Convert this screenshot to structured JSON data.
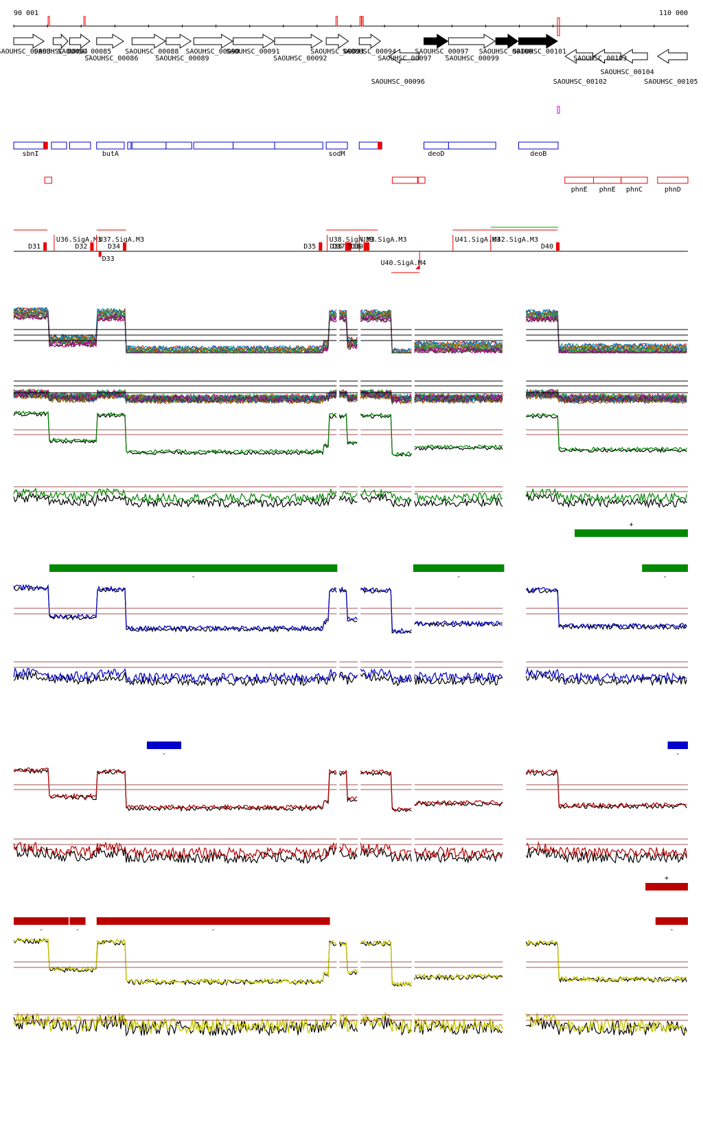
{
  "coordinates": {
    "start_label": "90 001",
    "end_label": "110 000",
    "start_bp": 90001,
    "end_bp": 110000
  },
  "colors": {
    "axis": "#000000",
    "red": "#ee0000",
    "blue_box": "#0000cc",
    "green": "#008800",
    "blue": "#0000cc",
    "darkred": "#bb0000",
    "yellow": "#c8c800",
    "black": "#000000",
    "thresh": "#a05050",
    "magenta": "#dd00dd"
  },
  "genes": [
    {
      "name": "SAOUHSC_00083",
      "label": "SAOUHSC_00083",
      "start": 90001,
      "end": 90920,
      "strand": "+",
      "filled": false,
      "row": 0
    },
    {
      "name": "SAOUHSC_00084",
      "label": "SAOUHSC_00084",
      "start": 91170,
      "end": 91630,
      "strand": "+",
      "filled": false,
      "row": 0
    },
    {
      "name": "SAOUHSC_00085",
      "label": "SAOUHSC_00085",
      "start": 91660,
      "end": 92280,
      "strand": "+",
      "filled": false,
      "row": 0
    },
    {
      "name": "SAOUHSC_00086",
      "label": "SAOUHSC_00086",
      "start": 92460,
      "end": 93280,
      "strand": "+",
      "filled": false,
      "row": 0
    },
    {
      "name": "SAOUHSC_00088",
      "label": "SAOUHSC_00088",
      "start": 93510,
      "end": 94520,
      "strand": "+",
      "filled": false,
      "row": 0
    },
    {
      "name": "SAOUHSC_00089",
      "label": "SAOUHSC_00089",
      "start": 94520,
      "end": 95280,
      "strand": "+",
      "filled": false,
      "row": 0
    },
    {
      "name": "SAOUHSC_00090",
      "label": "SAOUHSC_00090",
      "start": 95340,
      "end": 96510,
      "strand": "+",
      "filled": false,
      "row": 0
    },
    {
      "name": "SAOUHSC_00091",
      "label": "SAOUHSC_00091",
      "start": 96510,
      "end": 97740,
      "strand": "+",
      "filled": false,
      "row": 0
    },
    {
      "name": "SAOUHSC_00092",
      "label": "SAOUHSC_00092",
      "start": 97740,
      "end": 99170,
      "strand": "+",
      "filled": false,
      "row": 0
    },
    {
      "name": "SAOUHSC_00093",
      "label": "SAOUHSC_00093",
      "start": 99270,
      "end": 99950,
      "strand": "+",
      "filled": false,
      "row": 0
    },
    {
      "name": "SAOUHSC_00094",
      "label": "SAOUHSC_00094",
      "start": 100250,
      "end": 100900,
      "strand": "+",
      "filled": false,
      "row": 0
    },
    {
      "name": "SAOUHSC_00096",
      "label": "SAOUHSC_00096",
      "start": 101130,
      "end": 102040,
      "strand": "-",
      "filled": false,
      "row": 1
    },
    {
      "name": "SAOUHSC_00097",
      "label": "SAOUHSC_00097",
      "start": 102170,
      "end": 102900,
      "strand": "+",
      "filled": true,
      "row": 0
    },
    {
      "name": "SAOUHSC_00099",
      "label": "SAOUHSC_00099",
      "start": 102900,
      "end": 104300,
      "strand": "+",
      "filled": false,
      "row": 0
    },
    {
      "name": "SAOUHSC_00100",
      "label": "SAOUHSC_00100",
      "start": 104300,
      "end": 104980,
      "strand": "+",
      "filled": true,
      "row": 0
    },
    {
      "name": "SAOUHSC_00101",
      "label": "SAOUHSC_00101",
      "start": 104980,
      "end": 106150,
      "strand": "+",
      "filled": true,
      "row": 0
    },
    {
      "name": "SAOUHSC_00102",
      "label": "SAOUHSC_00102",
      "start": 106360,
      "end": 107200,
      "strand": "-",
      "filled": false,
      "row": 1
    },
    {
      "name": "SAOUHSC_00103",
      "label": "SAOUHSC_00103",
      "start": 107200,
      "end": 108030,
      "strand": "-",
      "filled": false,
      "row": 1
    },
    {
      "name": "SAOUHSC_00104",
      "label": "SAOUHSC_00104",
      "start": 108030,
      "end": 108820,
      "strand": "-",
      "filled": false,
      "row": 1
    },
    {
      "name": "SAOUHSC_00105",
      "label": "SAOUHSC_00105",
      "start": 109100,
      "end": 110000,
      "strand": "-",
      "filled": false,
      "row": 1
    }
  ],
  "gene_labels": [
    {
      "text": "SAOUHSC_00083",
      "bp": 90300,
      "line": 0
    },
    {
      "text": "SAOUHSC_00084",
      "bp": 91400,
      "line": 0
    },
    {
      "text": "SAOUHSC_00085",
      "bp": 92100,
      "line": 0
    },
    {
      "text": "SAOUHSC_00086",
      "bp": 92900,
      "line": 1
    },
    {
      "text": "SAOUHSC_00088",
      "bp": 94100,
      "line": 0
    },
    {
      "text": "SAOUHSC_00089",
      "bp": 95000,
      "line": 1
    },
    {
      "text": "SAOUHSC_00090",
      "bp": 95900,
      "line": 0
    },
    {
      "text": "SAOUHSC_00091",
      "bp": 97100,
      "line": 0
    },
    {
      "text": "SAOUHSC_00092",
      "bp": 98500,
      "line": 1
    },
    {
      "text": "SAOUHSC_00093",
      "bp": 99600,
      "line": 0
    },
    {
      "text": "SAOUHSC_00094",
      "bp": 100550,
      "line": 0
    },
    {
      "text": "SAOUHSC_00096",
      "bp": 101400,
      "line": 3
    },
    {
      "text": "SAOUHSC_00097",
      "bp": 101600,
      "line": 1
    },
    {
      "text": "SAOUHSC_00097",
      "bp": 102700,
      "line": 0
    },
    {
      "text": "SAOUHSC_00099",
      "bp": 103600,
      "line": 1
    },
    {
      "text": "SAOUHSC_00100",
      "bp": 104600,
      "line": 0
    },
    {
      "text": "SAOUHSC_00101",
      "bp": 105600,
      "line": 0
    },
    {
      "text": "SAOUHSC_00102",
      "bp": 106800,
      "line": 3
    },
    {
      "text": "SAOUHSC_00103",
      "bp": 107400,
      "line": 1
    },
    {
      "text": "SAOUHSC_00104",
      "bp": 108200,
      "line": 2
    },
    {
      "text": "SAOUHSC_00105",
      "bp": 109500,
      "line": 3
    }
  ],
  "operons": [
    {
      "label": "sbnI",
      "start": 90001,
      "end": 91000,
      "red_tail": true
    },
    {
      "label": "",
      "start": 91120,
      "end": 91570,
      "red_tail": false
    },
    {
      "label": "",
      "start": 91660,
      "end": 92280,
      "red_tail": false
    },
    {
      "label": "butA",
      "start": 92460,
      "end": 93280,
      "red_tail": false
    },
    {
      "label": "",
      "start": 93380,
      "end": 93480,
      "red_tail": false
    },
    {
      "label": "",
      "start": 93510,
      "end": 94520,
      "red_tail": false
    },
    {
      "label": "",
      "start": 94520,
      "end": 95280,
      "red_tail": false
    },
    {
      "label": "",
      "start": 95340,
      "end": 96510,
      "red_tail": false
    },
    {
      "label": "",
      "start": 96510,
      "end": 97740,
      "red_tail": false
    },
    {
      "label": "",
      "start": 97740,
      "end": 99170,
      "red_tail": false
    },
    {
      "label": "sodM",
      "start": 99270,
      "end": 99900,
      "red_tail": false
    },
    {
      "label": "",
      "start": 100250,
      "end": 100920,
      "red_tail": true
    },
    {
      "label": "deoD",
      "start": 102170,
      "end": 102900,
      "red_tail": false
    },
    {
      "label": "",
      "start": 102900,
      "end": 104300,
      "red_tail": false
    },
    {
      "label": "deoB",
      "start": 104980,
      "end": 106150,
      "red_tail": false
    }
  ],
  "red_boxes": [
    {
      "label": "",
      "start": 90920,
      "end": 91130
    },
    {
      "label": "",
      "start": 101230,
      "end": 101980
    },
    {
      "label": "",
      "start": 102000,
      "end": 102200
    },
    {
      "label": "phnE",
      "start": 106350,
      "end": 107200
    },
    {
      "label": "phnE",
      "start": 107200,
      "end": 108020
    },
    {
      "label": "phnC",
      "start": 108020,
      "end": 108800
    },
    {
      "label": "phnD",
      "start": 109100,
      "end": 110000
    }
  ],
  "promoters": [
    {
      "label": "D31",
      "bp": 90920,
      "dir": "down"
    },
    {
      "label": "U36.SigA.M3",
      "bp": 91200,
      "dir": "up"
    },
    {
      "label": "D32",
      "bp": 92310,
      "dir": "down"
    },
    {
      "label": "U37.SigA.M3",
      "bp": 92460,
      "dir": "up"
    },
    {
      "label": "D33",
      "bp": 92560,
      "dir": "down2"
    },
    {
      "label": "D34",
      "bp": 93280,
      "dir": "down"
    },
    {
      "label": "D35",
      "bp": 99090,
      "dir": "down"
    },
    {
      "label": "U38.SigA.M3",
      "bp": 99300,
      "dir": "up"
    },
    {
      "label": "D36",
      "bp": 99870,
      "dir": "down"
    },
    {
      "label": "D37",
      "bp": 99950,
      "dir": "down"
    },
    {
      "label": "U39.SigA.M3",
      "bp": 100250,
      "dir": "up"
    },
    {
      "label": "D38",
      "bp": 100420,
      "dir": "down"
    },
    {
      "label": "D39",
      "bp": 100490,
      "dir": "down"
    },
    {
      "label": "U40.SigA.M4",
      "bp": 101560,
      "dir": "down3"
    },
    {
      "label": "U41.SigA.M3",
      "bp": 103030,
      "dir": "up"
    },
    {
      "label": "U42.SigA.M3",
      "bp": 104150,
      "dir": "up"
    },
    {
      "label": "D40",
      "bp": 106130,
      "dir": "down"
    }
  ],
  "bar_segments": {
    "green_plus": [
      {
        "start": 106640,
        "end": 110000,
        "sign": "+"
      }
    ],
    "green_minus": [
      {
        "start": 91060,
        "end": 99600,
        "sign": "-"
      },
      {
        "start": 101850,
        "end": 104550,
        "sign": "-"
      },
      {
        "start": 108640,
        "end": 110000,
        "sign": "-"
      }
    ],
    "blue_minus": [
      {
        "start": 93950,
        "end": 94970,
        "sign": "-"
      },
      {
        "start": 109400,
        "end": 110000,
        "sign": "-"
      }
    ],
    "red_plus": [
      {
        "start": 108740,
        "end": 110000,
        "sign": "+"
      }
    ],
    "red_minus": [
      {
        "start": 90001,
        "end": 91630,
        "sign": "-"
      },
      {
        "start": 91660,
        "end": 92130,
        "sign": "-"
      },
      {
        "start": 92460,
        "end": 99380,
        "sign": "-"
      },
      {
        "start": 109040,
        "end": 110000,
        "sign": "-"
      }
    ]
  },
  "gaps": [
    {
      "start": 104550,
      "end": 105200
    }
  ],
  "hidden_breaks": [
    99620,
    100250,
    101850
  ]
}
